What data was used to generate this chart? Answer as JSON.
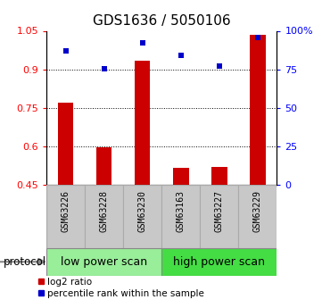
{
  "title": "GDS1636 / 5050106",
  "samples": [
    "GSM63226",
    "GSM63228",
    "GSM63230",
    "GSM63163",
    "GSM63227",
    "GSM63229"
  ],
  "log2_ratio": [
    0.77,
    0.595,
    0.935,
    0.515,
    0.52,
    1.035
  ],
  "percentile_rank": [
    87,
    75.5,
    92,
    84,
    77,
    95.5
  ],
  "ylim_left": [
    0.45,
    1.05
  ],
  "ylim_right": [
    0,
    100
  ],
  "yticks_left": [
    0.45,
    0.6,
    0.75,
    0.9,
    1.05
  ],
  "yticks_right": [
    0,
    25,
    50,
    75,
    100
  ],
  "ytick_labels_right": [
    "0",
    "25",
    "50",
    "75",
    "100%"
  ],
  "bar_color": "#cc0000",
  "dot_color": "#0000cc",
  "baseline": 0.45,
  "grid_yticks": [
    0.6,
    0.75,
    0.9
  ],
  "protocol_groups": [
    {
      "label": "low power scan",
      "color": "#99ee99",
      "start": 0,
      "end": 3
    },
    {
      "label": "high power scan",
      "color": "#44dd44",
      "start": 3,
      "end": 6
    }
  ],
  "legend_items": [
    {
      "label": "log2 ratio",
      "color": "#cc0000"
    },
    {
      "label": "percentile rank within the sample",
      "color": "#0000cc"
    }
  ],
  "protocol_label": "protocol",
  "background_color": "#ffffff",
  "label_area_color": "#c8c8c8",
  "title_fontsize": 11,
  "tick_fontsize": 8,
  "sample_fontsize": 7,
  "proto_fontsize": 9,
  "legend_fontsize": 7.5
}
